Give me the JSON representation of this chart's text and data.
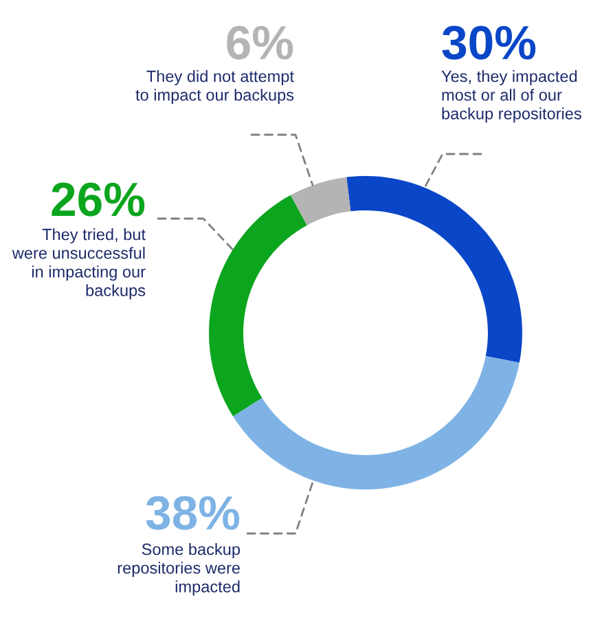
{
  "chart_data": {
    "type": "donut",
    "categories": [
      "Yes, they impacted\nmost or all of our\nbackup repositories",
      "Some backup\nrepositories were\nimpacted",
      "They tried, but\nwere unsuccessful\nin impacting our\nbackups",
      "They did not attempt\nto impact our backups"
    ],
    "values": [
      30,
      38,
      26,
      6
    ],
    "value_labels": [
      "30%",
      "38%",
      "26%",
      "6%"
    ],
    "colors": [
      "#0a46c8",
      "#7fb3e5",
      "#0ca51e",
      "#b4b4b4"
    ]
  }
}
